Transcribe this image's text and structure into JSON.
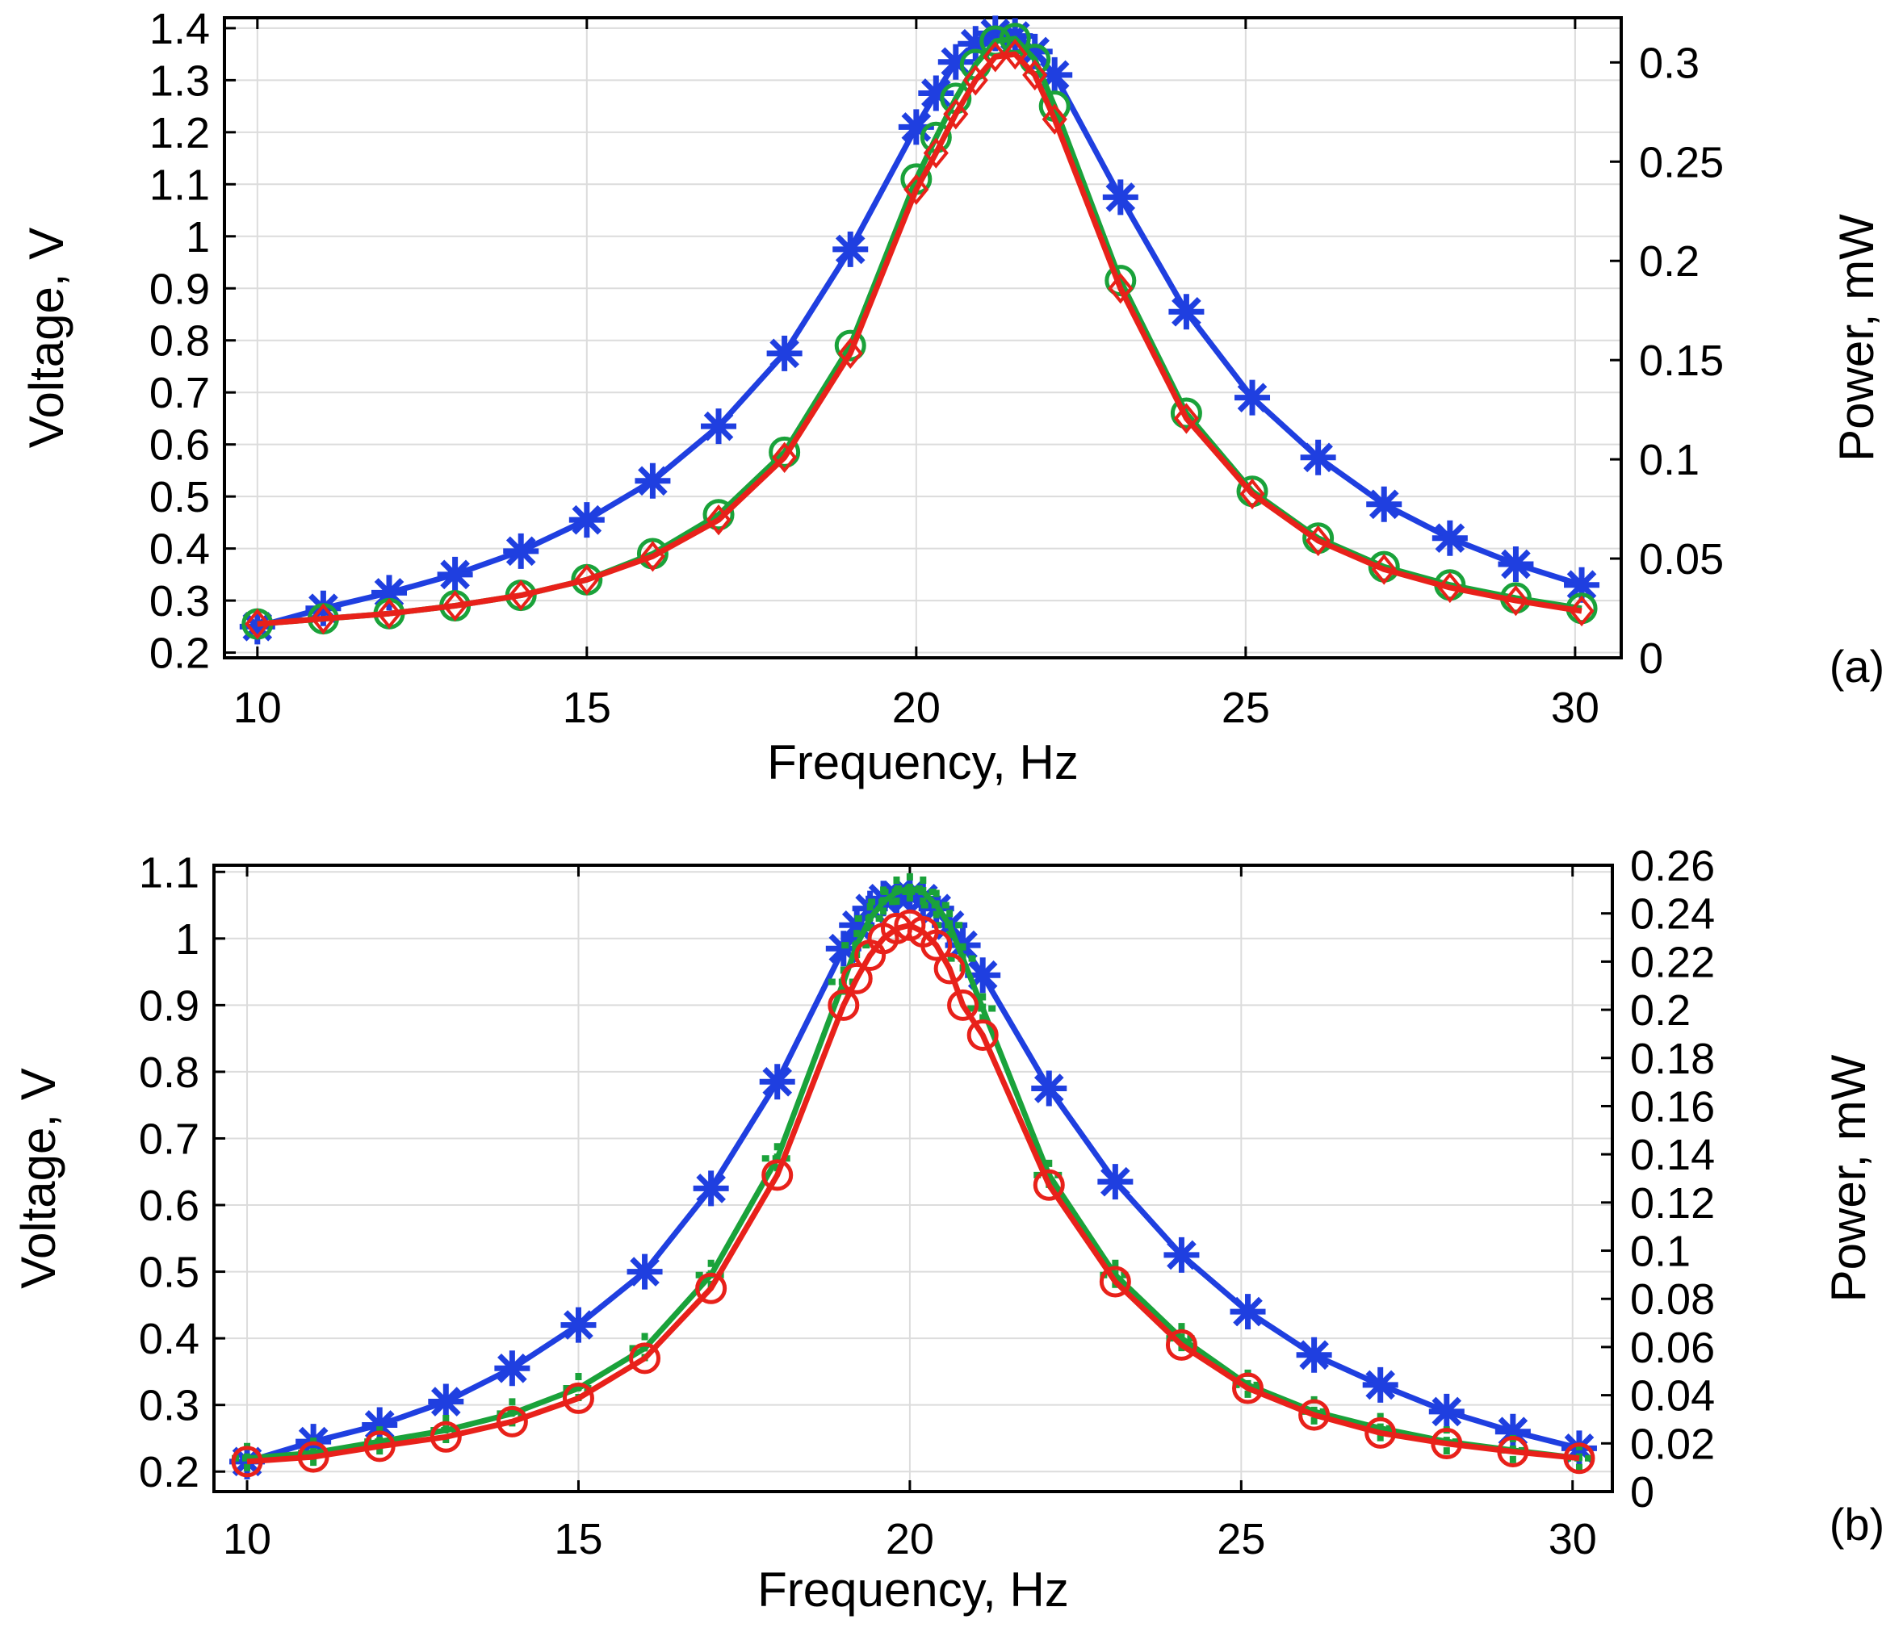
{
  "chart_data": [
    {
      "type": "line",
      "panel_label": "(a)",
      "xlabel": "Frequency, Hz",
      "ylabel": "Voltage, V",
      "ylabel_right": "Power, mW",
      "xlim": [
        9.5,
        30.7
      ],
      "ylim": [
        0.19,
        1.42
      ],
      "ylim_right": [
        0,
        0.3225
      ],
      "xticks": [
        10,
        15,
        20,
        25,
        30
      ],
      "yticks": [
        0.2,
        0.3,
        0.4,
        0.5,
        0.6,
        0.7,
        0.8,
        0.9,
        1,
        1.1,
        1.2,
        1.3,
        1.4
      ],
      "yticks_right": [
        0,
        0.05,
        0.1,
        0.15,
        0.2,
        0.25,
        0.3
      ],
      "ytick_labels_right": [
        "0",
        "0.05",
        "0.1",
        "0.15",
        "0.2",
        "0.25",
        "0.3"
      ],
      "grid": true,
      "series": [
        {
          "name": "blue-asterisk",
          "color": "#1f3fe0",
          "marker": "asterisk",
          "x": [
            10,
            11,
            12,
            13,
            14,
            15,
            16,
            17,
            18,
            19,
            20,
            20.3,
            20.6,
            20.9,
            21.2,
            21.5,
            21.8,
            22.1,
            23.1,
            24.1,
            25.1,
            26.1,
            27.1,
            28.1,
            29.1,
            30.1
          ],
          "values": [
            0.25,
            0.285,
            0.315,
            0.35,
            0.395,
            0.455,
            0.53,
            0.635,
            0.775,
            0.975,
            1.21,
            1.275,
            1.335,
            1.37,
            1.39,
            1.385,
            1.355,
            1.31,
            1.075,
            0.855,
            0.69,
            0.575,
            0.485,
            0.42,
            0.37,
            0.33
          ]
        },
        {
          "name": "green-circle",
          "color": "#1aa23a",
          "marker": "circle",
          "x": [
            10,
            11,
            12,
            13,
            14,
            15,
            16,
            17,
            18,
            19,
            20,
            20.3,
            20.6,
            20.9,
            21.2,
            21.5,
            21.8,
            22.1,
            23.1,
            24.1,
            25.1,
            26.1,
            27.1,
            28.1,
            29.1,
            30.1
          ],
          "values": [
            0.255,
            0.265,
            0.275,
            0.29,
            0.31,
            0.34,
            0.39,
            0.465,
            0.585,
            0.79,
            1.11,
            1.19,
            1.265,
            1.33,
            1.375,
            1.38,
            1.34,
            1.25,
            0.915,
            0.66,
            0.51,
            0.42,
            0.365,
            0.33,
            0.305,
            0.285
          ]
        },
        {
          "name": "red-diamond",
          "color": "#e8211a",
          "marker": "diamond",
          "x": [
            10,
            11,
            12,
            13,
            14,
            15,
            16,
            17,
            18,
            19,
            20,
            20.3,
            20.6,
            20.9,
            21.2,
            21.5,
            21.8,
            22.1,
            23.1,
            24.1,
            25.1,
            26.1,
            27.1,
            28.1,
            29.1,
            30.1
          ],
          "values": [
            0.255,
            0.265,
            0.275,
            0.29,
            0.31,
            0.34,
            0.385,
            0.455,
            0.575,
            0.775,
            1.09,
            1.16,
            1.235,
            1.3,
            1.345,
            1.35,
            1.31,
            1.225,
            0.9,
            0.65,
            0.505,
            0.415,
            0.36,
            0.325,
            0.3,
            0.28
          ]
        }
      ]
    },
    {
      "type": "line",
      "panel_label": "(b)",
      "xlabel": "Frequency, Hz",
      "ylabel": "Voltage, V",
      "ylabel_right": "Power, mW",
      "xlim": [
        9.5,
        30.6
      ],
      "ylim": [
        0.17,
        1.11
      ],
      "ylim_right": [
        0,
        0.26
      ],
      "xticks": [
        10,
        15,
        20,
        25,
        30
      ],
      "yticks": [
        0.2,
        0.3,
        0.4,
        0.5,
        0.6,
        0.7,
        0.8,
        0.9,
        1,
        1.1
      ],
      "yticks_right": [
        0,
        0.02,
        0.04,
        0.06,
        0.08,
        0.1,
        0.12,
        0.14,
        0.16,
        0.18,
        0.2,
        0.22,
        0.24,
        0.26
      ],
      "ytick_labels_right": [
        "0",
        "0.02",
        "0.04",
        "0.06",
        "0.08",
        "0.1",
        "0.12",
        "0.14",
        "0.16",
        "0.18",
        "0.2",
        "0.22",
        "0.24",
        "0.26"
      ],
      "grid": true,
      "series": [
        {
          "name": "blue-asterisk",
          "color": "#1f3fe0",
          "marker": "asterisk",
          "x": [
            10,
            11,
            12,
            13,
            14,
            15,
            16,
            17,
            18,
            19,
            19.2,
            19.4,
            19.6,
            19.8,
            20,
            20.2,
            20.4,
            20.6,
            20.8,
            21.1,
            22.1,
            23.1,
            24.1,
            25.1,
            26.1,
            27.1,
            28.1,
            29.1,
            30.1
          ],
          "values": [
            0.215,
            0.245,
            0.27,
            0.305,
            0.355,
            0.42,
            0.5,
            0.625,
            0.785,
            0.985,
            1.02,
            1.045,
            1.06,
            1.065,
            1.065,
            1.06,
            1.045,
            1.02,
            0.99,
            0.945,
            0.775,
            0.635,
            0.525,
            0.44,
            0.375,
            0.33,
            0.29,
            0.26,
            0.235
          ]
        },
        {
          "name": "green-plus",
          "color": "#1aa23a",
          "marker": "plus",
          "x": [
            10,
            11,
            12,
            13,
            14,
            15,
            16,
            17,
            18,
            19,
            19.2,
            19.4,
            19.6,
            19.8,
            20,
            20.2,
            20.4,
            20.6,
            20.8,
            21.1,
            22.1,
            23.1,
            24.1,
            25.1,
            26.1,
            27.1,
            28.1,
            29.1,
            30.1
          ],
          "values": [
            0.22,
            0.228,
            0.245,
            0.262,
            0.287,
            0.325,
            0.385,
            0.495,
            0.67,
            0.935,
            0.99,
            1.03,
            1.055,
            1.07,
            1.075,
            1.07,
            1.05,
            1.02,
            0.97,
            0.895,
            0.645,
            0.495,
            0.4,
            0.33,
            0.29,
            0.265,
            0.245,
            0.232,
            0.22
          ]
        },
        {
          "name": "red-circle",
          "color": "#e8211a",
          "marker": "circle",
          "x": [
            10,
            11,
            12,
            13,
            14,
            15,
            16,
            17,
            18,
            19,
            19.2,
            19.4,
            19.6,
            19.8,
            20,
            20.2,
            20.4,
            20.6,
            20.8,
            21.1,
            22.1,
            23.1,
            24.1,
            25.1,
            26.1,
            27.1,
            28.1,
            29.1,
            30.1
          ],
          "values": [
            0.215,
            0.222,
            0.238,
            0.252,
            0.275,
            0.31,
            0.37,
            0.475,
            0.645,
            0.9,
            0.94,
            0.975,
            1.0,
            1.015,
            1.02,
            1.01,
            0.99,
            0.955,
            0.9,
            0.855,
            0.63,
            0.485,
            0.39,
            0.325,
            0.285,
            0.258,
            0.242,
            0.23,
            0.22
          ]
        }
      ]
    }
  ]
}
